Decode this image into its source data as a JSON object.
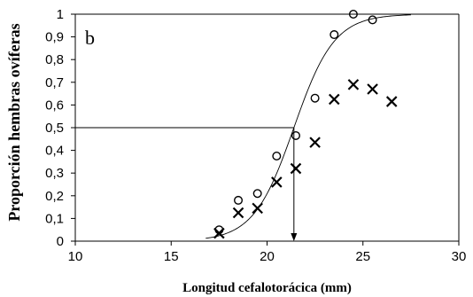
{
  "chart_data": {
    "type": "scatter",
    "panel_label": "b",
    "xlabel": "Longitud cefalotorácica (mm)",
    "ylabel": "Proporción hembras ovíferas",
    "xlim": [
      10,
      30
    ],
    "ylim": [
      0,
      1
    ],
    "x_ticks": [
      {
        "value": 10,
        "label": "10"
      },
      {
        "value": 15,
        "label": "15"
      },
      {
        "value": 20,
        "label": "20"
      },
      {
        "value": 25,
        "label": "25"
      },
      {
        "value": 30,
        "label": "30"
      }
    ],
    "y_ticks": [
      {
        "value": 0,
        "label": "0"
      },
      {
        "value": 0.1,
        "label": "0,1"
      },
      {
        "value": 0.2,
        "label": "0,2"
      },
      {
        "value": 0.3,
        "label": "0,3"
      },
      {
        "value": 0.4,
        "label": "0,4"
      },
      {
        "value": 0.5,
        "label": "0,5"
      },
      {
        "value": 0.6,
        "label": "0,6"
      },
      {
        "value": 0.7,
        "label": "0,7"
      },
      {
        "value": 0.8,
        "label": "0,8"
      },
      {
        "value": 0.9,
        "label": "0,9"
      },
      {
        "value": 1,
        "label": "1"
      }
    ],
    "grid": false,
    "series": [
      {
        "marker": "circle",
        "x": [
          17.5,
          18.5,
          19.5,
          20.5,
          21.5,
          22.5,
          23.5,
          24.5,
          25.5
        ],
        "y": [
          0.05,
          0.18,
          0.21,
          0.375,
          0.465,
          0.63,
          0.91,
          1.0,
          0.975
        ]
      },
      {
        "marker": "cross",
        "x": [
          17.5,
          18.5,
          19.5,
          20.5,
          21.5,
          22.5,
          23.5,
          24.5,
          25.5,
          26.5
        ],
        "y": [
          0.035,
          0.125,
          0.145,
          0.26,
          0.32,
          0.435,
          0.625,
          0.69,
          0.67,
          0.615
        ]
      }
    ],
    "fitted_curve": {
      "type": "logistic",
      "midpoint": 21.4,
      "slope": 0.95,
      "x_range": [
        16.8,
        27.5
      ]
    },
    "reference": {
      "y": 0.5,
      "x": 21.4,
      "arrow": "down"
    }
  }
}
